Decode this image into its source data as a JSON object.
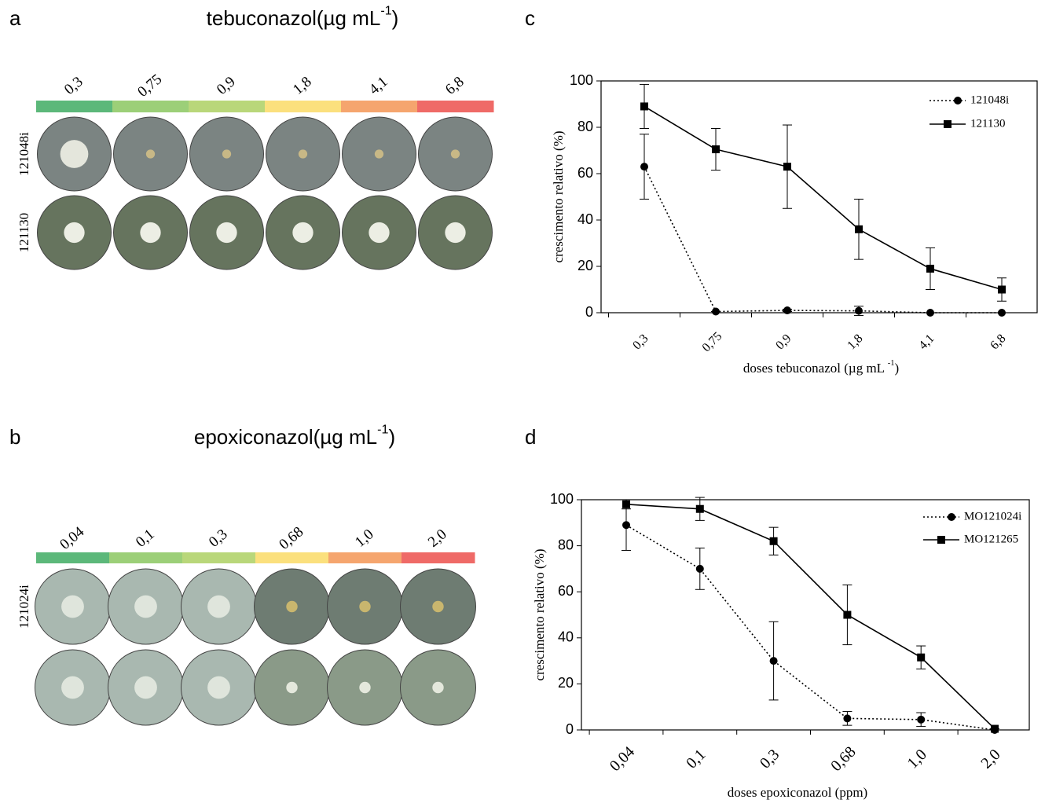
{
  "panels": [
    {
      "label": "a",
      "title": "tebuconazol(µg mL",
      "title_sup": "-1",
      "title_end": ")",
      "doses": [
        "0,3",
        "0,75",
        "0,9",
        "1,8",
        "4,1",
        "6,8"
      ],
      "dose_colors": [
        "#5cb87a",
        "#9ccf78",
        "#b9d77a",
        "#fbe07d",
        "#f5a56e",
        "#ef6a67"
      ],
      "row_labels": [
        "121048i",
        "121130"
      ]
    },
    {
      "label": "b",
      "title": "epoxiconazol(µg mL",
      "title_sup": "-1",
      "title_end": ")",
      "doses": [
        "0,04",
        "0,1",
        "0,3",
        "0,68",
        "1,0",
        "2,0"
      ],
      "dose_colors": [
        "#5cb87a",
        "#9ccf78",
        "#b9d77a",
        "#fbe07d",
        "#f5a56e",
        "#ef6a67"
      ],
      "row_labels": [
        "121024i"
      ]
    }
  ],
  "chart_data": [
    {
      "label": "c",
      "type": "line",
      "x_label": "doses tebuconazol (µg mL ",
      "x_label_sup": "-1",
      "x_label_end": ")",
      "y_label": "crescimento relativo (%)",
      "categories": [
        "0,3",
        "0,75",
        "0,9",
        "1,8",
        "4,1",
        "6,8"
      ],
      "ylim": [
        0,
        100
      ],
      "yticks": [
        0,
        20,
        40,
        60,
        80,
        100
      ],
      "legend": "upper right",
      "series": [
        {
          "name": "121048i",
          "color": "#000000",
          "line_style": "dotted",
          "marker": "circle",
          "values": [
            63,
            0.5,
            1,
            0.8,
            0,
            0
          ],
          "errors": [
            14,
            0,
            0.5,
            2,
            0,
            0
          ]
        },
        {
          "name": "121130",
          "color": "#000000",
          "line_style": "solid",
          "marker": "square",
          "values": [
            89,
            70.5,
            63,
            36,
            19,
            10
          ],
          "errors": [
            9.5,
            9,
            18,
            13,
            9,
            5
          ]
        }
      ]
    },
    {
      "label": "d",
      "type": "line",
      "x_label": "doses epoxiconazol (ppm)",
      "y_label": "crescimento relativo (%)",
      "categories": [
        "0,04",
        "0,1",
        "0,3",
        "0,68",
        "1,0",
        "2,0"
      ],
      "ylim": [
        0,
        100
      ],
      "yticks": [
        0,
        20,
        40,
        60,
        80,
        100
      ],
      "legend": "upper right",
      "series": [
        {
          "name": "MO121024i",
          "color": "#000000",
          "line_style": "dotted",
          "marker": "circle",
          "values": [
            89,
            70,
            30,
            5,
            4.5,
            0
          ],
          "errors": [
            11,
            9,
            17,
            3,
            3,
            0
          ]
        },
        {
          "name": "MO121265",
          "color": "#000000",
          "line_style": "solid",
          "marker": "square",
          "values": [
            98,
            96,
            82,
            50,
            31.5,
            0.5
          ],
          "errors": [
            2,
            5,
            6,
            13,
            5,
            0
          ]
        }
      ]
    }
  ]
}
